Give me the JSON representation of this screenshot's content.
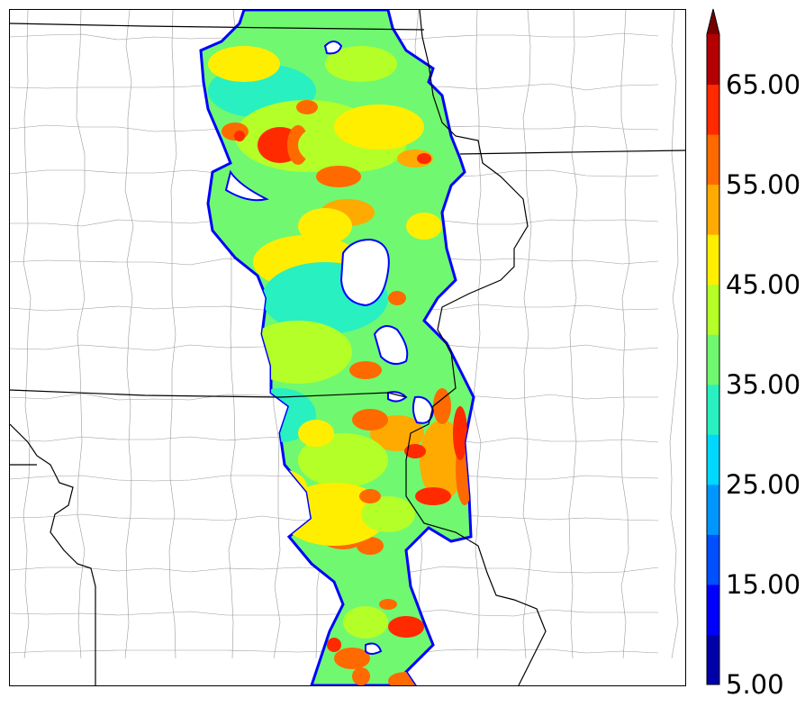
{
  "colorbar": {
    "extend": "max",
    "levels": [
      5,
      10,
      15,
      20,
      25,
      30,
      35,
      40,
      45,
      50,
      55,
      60,
      65,
      70
    ],
    "colors": [
      "#0000a8",
      "#0000ff",
      "#0050ff",
      "#0096ff",
      "#00d8ff",
      "#28f0c0",
      "#70f870",
      "#b4ff28",
      "#ffee00",
      "#ffaa00",
      "#ff6a00",
      "#ff2a00",
      "#b40000"
    ],
    "extend_color": "#780000",
    "tick_labels": [
      "5.00",
      "15.00",
      "25.00",
      "35.00",
      "45.00",
      "55.00",
      "65.00"
    ]
  },
  "map": {
    "background": "#ffffff",
    "state_line_color": "#000000",
    "county_line_color": "#9a9a9a",
    "field_palette_note_colors": [
      "#70f870",
      "#28f0c0",
      "#b4ff28",
      "#ffee00",
      "#ffaa00",
      "#ff6a00",
      "#ff2a00"
    ]
  }
}
